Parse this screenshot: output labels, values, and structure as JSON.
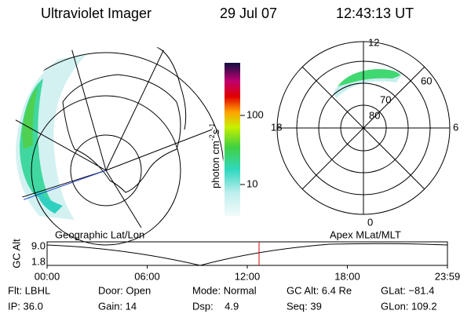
{
  "header": {
    "instrument": "Ultraviolet Imager",
    "date": "29 Jul 07",
    "time": "12:43:13 UT"
  },
  "colorbar": {
    "label": "photon cm",
    "exp1": "-2",
    "unit2": "s",
    "exp2": "-1",
    "ticks": [
      "100",
      "10"
    ]
  },
  "polar": {
    "rings": [
      "80",
      "70",
      "60"
    ],
    "mlt": {
      "top": "12",
      "left": "18",
      "right": "6",
      "bottom": "0"
    }
  },
  "timeline": {
    "left_title": "Geographic Lat/Lon",
    "right_title": "Apex MLat/MLT",
    "y_label": "GC Alt",
    "y_ticks": [
      "9.0",
      "1.8"
    ],
    "x_ticks": [
      "00:00",
      "06:00",
      "12:00",
      "18:00",
      "23:59"
    ]
  },
  "footer": {
    "rows": [
      [
        "Flt: LBHL",
        "Door: Open",
        "Mode: Normal",
        "GC Alt: 6.4 Re",
        "GLat: −81.4"
      ],
      [
        "IP: 36.0",
        "Gain: 14",
        "Dsp:    4.9",
        "Seq: 39",
        "GLon: 109.2"
      ]
    ]
  }
}
